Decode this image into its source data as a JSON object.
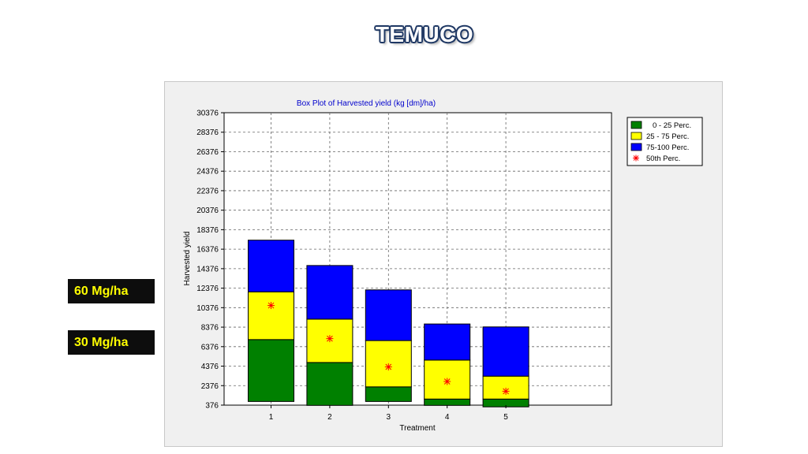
{
  "slide": {
    "title": "TEMUCO",
    "callouts": [
      "60 Mg/ha",
      "30 Mg/ha"
    ]
  },
  "colors": {
    "p0_25": "#008000",
    "p25_75": "#ffff00",
    "p75_100": "#0000ff",
    "median": "#ff0000",
    "title_text": "#0000cc"
  },
  "chart_data": {
    "type": "bar",
    "subtype": "stacked percentile box plot",
    "title": "Box Plot of Harvested yield (kg [dm]/ha)",
    "xlabel": "Treatment",
    "ylabel": "Harvested yield",
    "categories": [
      "1",
      "2",
      "3",
      "4",
      "5"
    ],
    "y_ticks": [
      "376",
      "2376",
      "4376",
      "6376",
      "8376",
      "10376",
      "12376",
      "14376",
      "16376",
      "18376",
      "20376",
      "22376",
      "24376",
      "26376",
      "28376",
      "30376"
    ],
    "ylim": [
      376,
      30376
    ],
    "grid": true,
    "legend_position": "top-right",
    "series": [
      {
        "name": "0 - 25 Perc.",
        "min": [
          750,
          350,
          750,
          350,
          200
        ],
        "max": [
          7100,
          4750,
          2250,
          1000,
          1000
        ]
      },
      {
        "name": "25 - 75 Perc.",
        "min": [
          7100,
          4750,
          2250,
          1000,
          1000
        ],
        "max": [
          12000,
          9200,
          7000,
          5000,
          3350
        ]
      },
      {
        "name": "75-100 Perc.",
        "min": [
          12000,
          9200,
          7000,
          5000,
          3350
        ],
        "max": [
          17300,
          14700,
          12200,
          8700,
          8400
        ]
      }
    ],
    "median": {
      "name": "50th Perc.",
      "values": [
        10600,
        7200,
        4300,
        2800,
        1800
      ]
    }
  }
}
